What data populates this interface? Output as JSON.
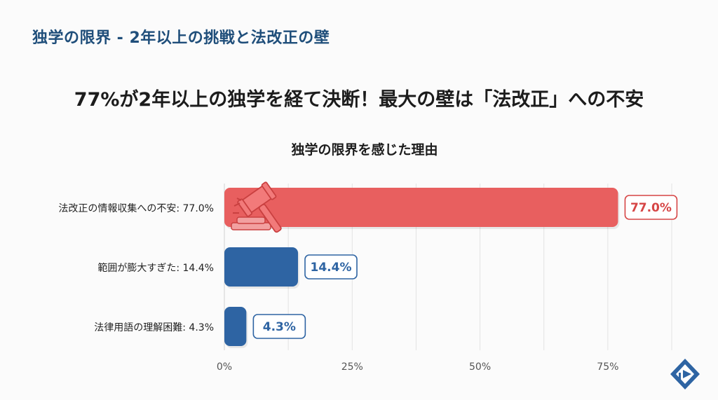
{
  "header": {
    "title": "独学の限界 - 2年以上の挑戦と法改正の壁"
  },
  "headline": "77%が2年以上の独学を経て決断！最大の壁は「法改正」への不安",
  "chart_data": {
    "type": "bar",
    "orientation": "horizontal",
    "title": "独学の限界を感じた理由",
    "categories": [
      "法改正の情報収集への不安",
      "範囲が膨大すぎた",
      "法律用語の理解困難"
    ],
    "category_labels": [
      "法改正の情報収集への不安: 77.0%",
      "範囲が膨大すぎた: 14.4%",
      "法律用語の理解困難: 4.3%"
    ],
    "values": [
      77.0,
      14.4,
      4.3
    ],
    "value_labels": [
      "77.0%",
      "14.4%",
      "4.3%"
    ],
    "colors": [
      "#e85f5f",
      "#2e64a3",
      "#2e64a3"
    ],
    "label_colors": [
      "#d64545",
      "#2e64a3",
      "#2e64a3"
    ],
    "xlim": [
      0,
      87.5
    ],
    "x_ticks": [
      0,
      25,
      50,
      75
    ],
    "x_tick_labels": [
      "0%",
      "25%",
      "50%",
      "75%"
    ],
    "grid": true,
    "highlight_icon": "gavel-icon"
  },
  "logo_icon": "brand-logo-icon"
}
